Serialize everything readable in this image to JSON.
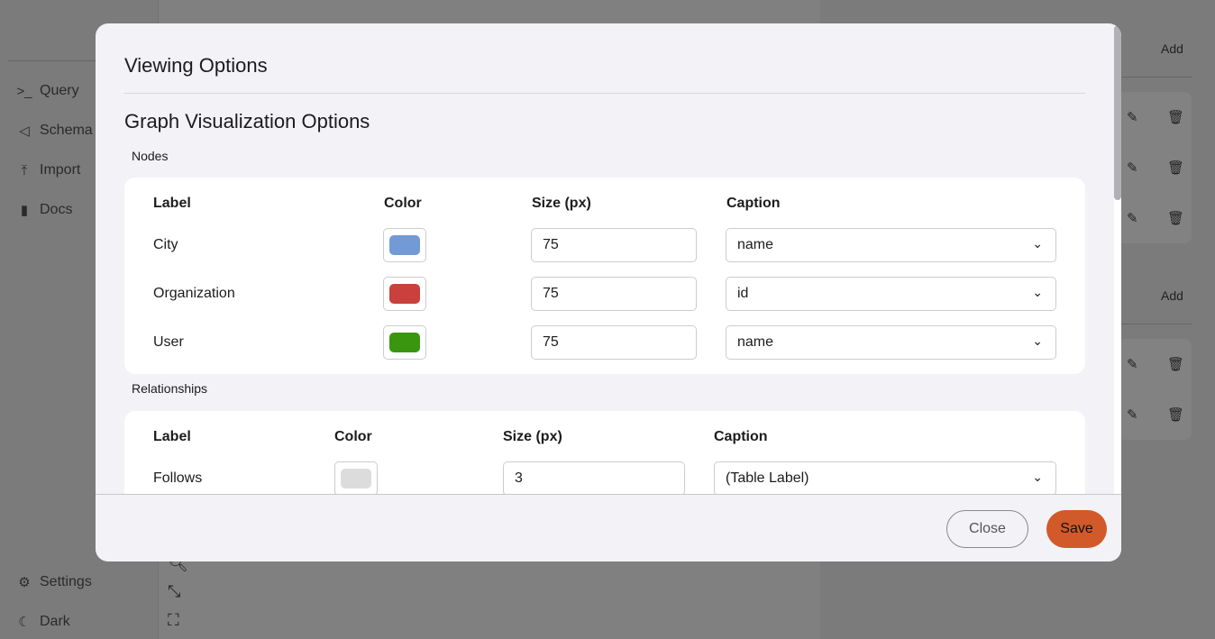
{
  "sidebar": {
    "items": [
      {
        "label": "Query",
        "icon": "terminal-icon"
      },
      {
        "label": "Schema",
        "icon": "schema-icon"
      },
      {
        "label": "Import",
        "icon": "upload-icon"
      },
      {
        "label": "Docs",
        "icon": "book-icon"
      }
    ],
    "bottom": [
      {
        "label": "Settings",
        "icon": "gear-icon"
      },
      {
        "label": "Dark",
        "icon": "moon-icon"
      }
    ]
  },
  "right_panel": {
    "add_label": "Add"
  },
  "modal": {
    "title": "Viewing Options",
    "subtitle": "Graph Visualization Options",
    "nodes": {
      "heading": "Nodes",
      "columns": [
        "Label",
        "Color",
        "Size (px)",
        "Caption"
      ],
      "rows": [
        {
          "label": "City",
          "color": "#729bd6",
          "size": "75",
          "caption": "name"
        },
        {
          "label": "Organization",
          "color": "#c9403d",
          "size": "75",
          "caption": "id"
        },
        {
          "label": "User",
          "color": "#3a960f",
          "size": "75",
          "caption": "name"
        }
      ]
    },
    "relationships": {
      "heading": "Relationships",
      "columns": [
        "Label",
        "Color",
        "Size (px)",
        "Caption"
      ],
      "rows": [
        {
          "label": "Follows",
          "color": "#dcdcdc",
          "size": "3",
          "caption": "(Table Label)"
        }
      ]
    },
    "close_label": "Close",
    "save_label": "Save",
    "accent": "#d2592a"
  }
}
